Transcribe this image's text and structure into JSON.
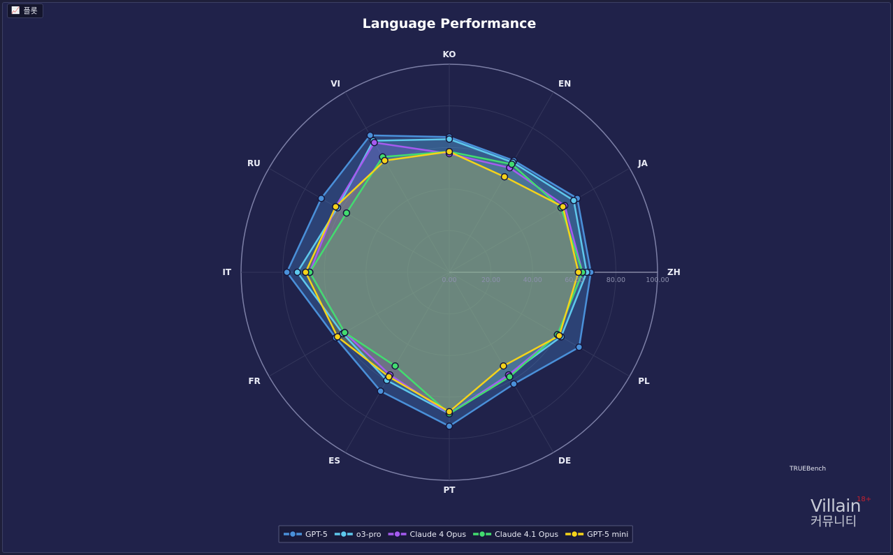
{
  "toolbar": {
    "plot_label": "플롯",
    "plot_icon": "chart-icon"
  },
  "watermark": {
    "brand": "Villain",
    "age": "18+",
    "sub": "커뮤니티"
  },
  "chart_data": {
    "type": "radar",
    "title": "Language Performance",
    "source_label": "TRUEBench",
    "axes": [
      "KO",
      "EN",
      "JA",
      "ZH",
      "PL",
      "DE",
      "PT",
      "ES",
      "FR",
      "IT",
      "RU",
      "VI"
    ],
    "radial_ticks": [
      "0.00",
      "20.00",
      "40.00",
      "60.00",
      "80.00",
      "100.00"
    ],
    "rlim": [
      0,
      100
    ],
    "legend_position": "bottom-center",
    "series": [
      {
        "name": "GPT-5",
        "color": "#4a90d9",
        "values": [
          65,
          62,
          71,
          68,
          72,
          62,
          74,
          66,
          63,
          78,
          71,
          76
        ]
      },
      {
        "name": "o3-pro",
        "color": "#5ec8ec",
        "values": [
          64,
          61,
          69,
          66,
          62,
          57,
          68,
          60,
          59,
          73,
          62,
          73
        ]
      },
      {
        "name": "Claude 4 Opus",
        "color": "#a55bf0",
        "values": [
          57,
          58,
          64,
          64,
          60,
          57,
          68,
          57,
          58,
          67,
          63,
          72
        ]
      },
      {
        "name": "Claude 4.1 Opus",
        "color": "#43dc6f",
        "values": [
          58,
          60,
          62,
          64,
          60,
          58,
          68,
          52,
          58,
          67,
          57,
          64
        ]
      },
      {
        "name": "GPT-5 mini",
        "color": "#f5d31a",
        "values": [
          58,
          53,
          63,
          62,
          61,
          52,
          67,
          58,
          62,
          69,
          63,
          62
        ]
      }
    ]
  }
}
